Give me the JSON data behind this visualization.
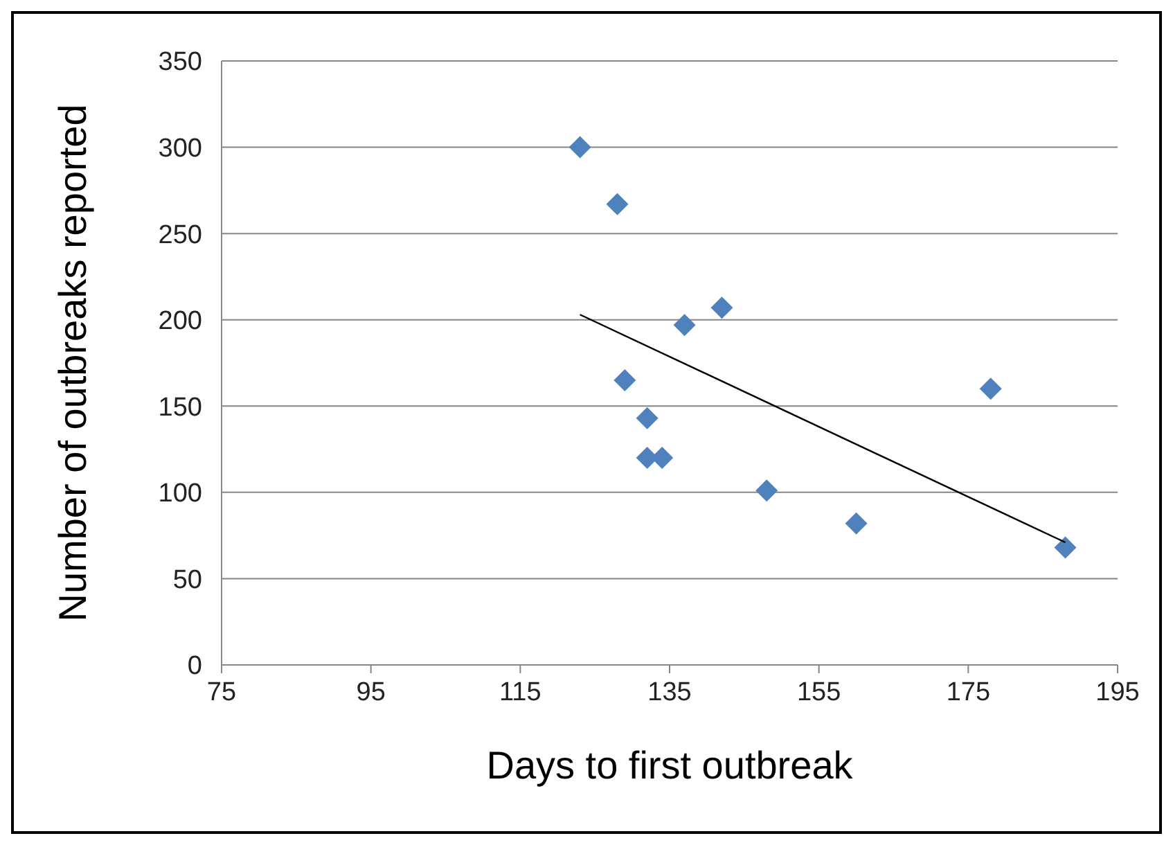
{
  "chart_data": {
    "type": "scatter",
    "xlabel": "Days to first outbreak",
    "ylabel": "Number of outbreaks reported",
    "xlim": [
      75,
      195
    ],
    "xticks": [
      75,
      95,
      115,
      135,
      155,
      175,
      195
    ],
    "ylim": [
      0,
      350
    ],
    "yticks": [
      0,
      50,
      100,
      150,
      200,
      250,
      300,
      350
    ],
    "grid": "y",
    "legend": false,
    "marker": "diamond",
    "series": [
      {
        "type": "scatter",
        "color": "#4f81bd",
        "x": [
          123,
          128,
          129,
          132,
          132,
          134,
          137,
          142,
          148,
          160,
          178,
          188
        ],
        "values": [
          300,
          267,
          165,
          143,
          120,
          120,
          197,
          207,
          101,
          82,
          160,
          68
        ]
      },
      {
        "type": "line",
        "color": "#000000",
        "marker": "none",
        "x": [
          123,
          188
        ],
        "values": [
          203,
          71
        ]
      }
    ]
  }
}
